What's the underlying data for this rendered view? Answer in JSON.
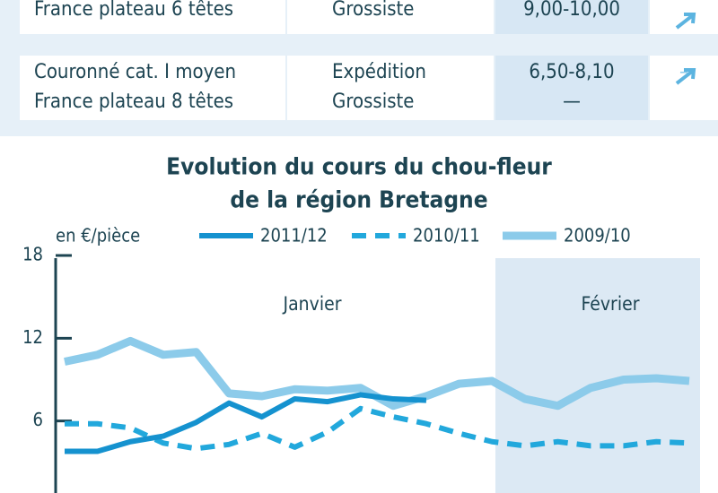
{
  "table": {
    "rows": [
      [
        [
          "France plateau 6 têtes"
        ],
        [
          "Grossiste"
        ],
        [
          "9,00-10,00"
        ],
        []
      ],
      [
        [
          "Couronné cat. I moyen",
          "France plateau 8 têtes"
        ],
        [
          "Expédition",
          "Grossiste"
        ],
        [
          "6,50-8,10",
          "—"
        ],
        [
          "",
          "–"
        ]
      ]
    ]
  },
  "chart_data": {
    "type": "line",
    "title": [
      "Evolution du cours du chou-fleur",
      "de la région Bretagne"
    ],
    "y_label": "en €/pièce",
    "categories": [
      null,
      null,
      null,
      null,
      null,
      null,
      null,
      null,
      null,
      null,
      null,
      null,
      null,
      null,
      null,
      null,
      null,
      null,
      null,
      null
    ],
    "annotations": [
      "Janvier",
      "Février"
    ],
    "ylim": [
      0,
      18
    ],
    "yticks": [
      0,
      6,
      12,
      18
    ],
    "series": [
      {
        "name": "2009/10",
        "color": "#8ccbea",
        "style": "solid",
        "values": [
          10.3,
          10.8,
          11.8,
          10.8,
          11.0,
          8.0,
          7.8,
          8.3,
          8.2,
          8.4,
          7.1,
          7.8,
          8.7,
          8.9,
          7.6,
          7.1,
          8.4,
          9.0,
          9.1,
          8.9
        ]
      },
      {
        "name": "2010/11",
        "color": "#22a8dc",
        "style": "dashed",
        "values": [
          5.8,
          5.8,
          5.5,
          4.4,
          4.0,
          4.3,
          5.1,
          4.1,
          5.2,
          6.9,
          6.3,
          5.8,
          5.1,
          4.5,
          4.2,
          4.5,
          4.2,
          4.2,
          4.5,
          4.4
        ]
      },
      {
        "name": "2011/12",
        "color": "#1592cf",
        "style": "solid",
        "values": [
          3.8,
          3.8,
          4.5,
          4.9,
          5.9,
          7.3,
          6.3,
          7.6,
          7.4,
          7.9,
          7.6,
          7.5,
          null,
          null,
          null,
          null,
          null,
          null,
          null,
          null
        ]
      }
    ]
  }
}
